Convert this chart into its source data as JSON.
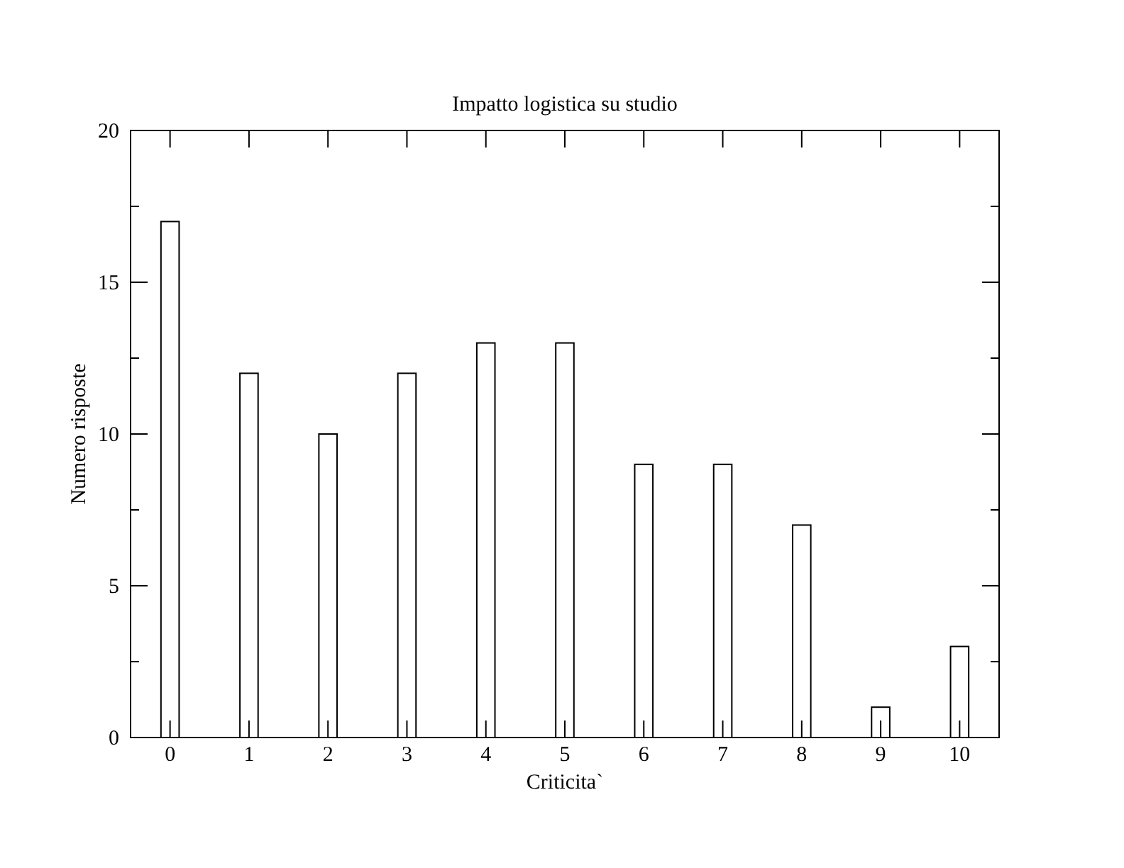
{
  "chart_data": {
    "type": "bar",
    "title": "Impatto logistica su studio",
    "xlabel": "Criticita`",
    "ylabel": "Numero risposte",
    "x": [
      0,
      1,
      2,
      3,
      4,
      5,
      6,
      7,
      8,
      9,
      10
    ],
    "values": [
      17,
      12,
      10,
      12,
      13,
      13,
      9,
      9,
      7,
      1,
      3
    ],
    "color": "#ffffff",
    "xlim": [
      -0.5,
      10.5
    ],
    "xticks": [
      0,
      1,
      2,
      3,
      4,
      5,
      6,
      7,
      8,
      9,
      10
    ],
    "ylim": [
      0,
      20
    ],
    "yticks": [
      0,
      {
        "value": 2.5,
        "label": null
      },
      5,
      {
        "value": 7.5,
        "label": null
      },
      10,
      {
        "value": 12.5,
        "label": null
      },
      15,
      {
        "value": 17.5,
        "label": null
      },
      20
    ]
  }
}
